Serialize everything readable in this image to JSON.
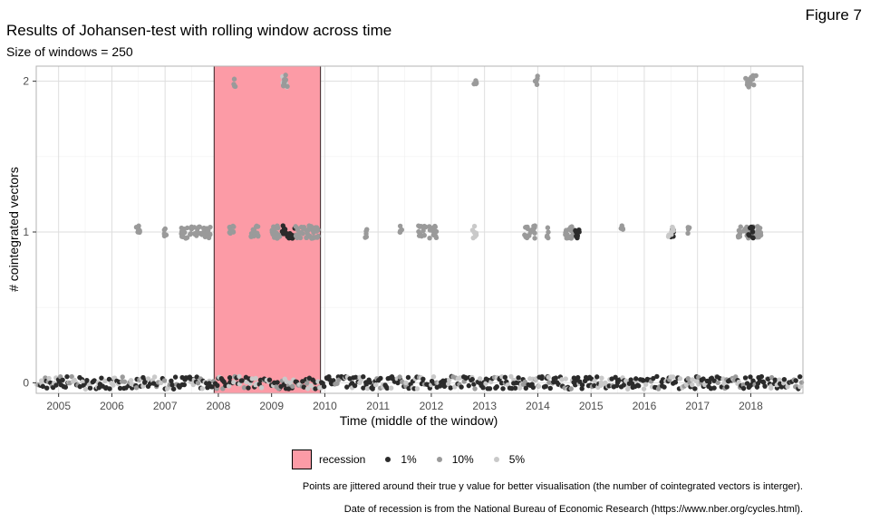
{
  "figure_label": "Figure 7",
  "chart_data": {
    "type": "scatter",
    "title": "Results of Johansen-test with rolling window across time",
    "subtitle": "Size of windows = 250",
    "xlabel": "Time (middle of the window)",
    "ylabel": "# cointegrated vectors",
    "x_ticks": [
      "2005",
      "2006",
      "2007",
      "2008",
      "2009",
      "2010",
      "2011",
      "2012",
      "2013",
      "2014",
      "2015",
      "2016",
      "2017",
      "2018"
    ],
    "y_ticks": [
      0,
      1,
      2
    ],
    "xlim": [
      2004.58,
      2018.98
    ],
    "ylim": [
      -0.07,
      2.1
    ],
    "grid": true,
    "legend_position": "bottom",
    "recession": {
      "label": "recession",
      "start": 2007.92,
      "end": 2009.92,
      "color": "#fc9ba6"
    },
    "series": [
      {
        "name": "1%",
        "color": "#2b2b2b"
      },
      {
        "name": "10%",
        "color": "#9a9a9a"
      },
      {
        "name": "5%",
        "color": "#c9c9c9"
      }
    ],
    "base_level": {
      "y": 0,
      "x_range": [
        2004.6,
        2018.97
      ]
    },
    "clusters": [
      {
        "x": [
          2006.45,
          2006.55
        ],
        "y": 1,
        "series": "10%"
      },
      {
        "x": [
          2006.98,
          2007.03
        ],
        "y": 1,
        "series": "10%"
      },
      {
        "x": [
          2007.3,
          2007.5
        ],
        "y": 1,
        "series": "10%"
      },
      {
        "x": [
          2007.55,
          2007.88
        ],
        "y": 1,
        "series": "10%"
      },
      {
        "x": [
          2008.2,
          2008.3
        ],
        "y": 1,
        "series": "10%"
      },
      {
        "x": [
          2008.6,
          2008.75
        ],
        "y": 1,
        "series": "10%"
      },
      {
        "x": [
          2009.0,
          2009.2
        ],
        "y": 1,
        "series": "10%"
      },
      {
        "x": [
          2009.2,
          2009.45
        ],
        "y": 1,
        "series": "1%"
      },
      {
        "x": [
          2009.45,
          2009.9
        ],
        "y": 1,
        "series": "10%"
      },
      {
        "x": [
          2010.75,
          2010.8
        ],
        "y": 1,
        "series": "10%"
      },
      {
        "x": [
          2011.4,
          2011.45
        ],
        "y": 1,
        "series": "10%"
      },
      {
        "x": [
          2011.75,
          2011.9
        ],
        "y": 1,
        "series": "10%"
      },
      {
        "x": [
          2011.95,
          2012.1
        ],
        "y": 1,
        "series": "10%"
      },
      {
        "x": [
          2012.75,
          2012.85
        ],
        "y": 1,
        "series": "5%"
      },
      {
        "x": [
          2013.75,
          2013.95
        ],
        "y": 1,
        "series": "10%"
      },
      {
        "x": [
          2014.15,
          2014.2
        ],
        "y": 1,
        "series": "10%"
      },
      {
        "x": [
          2014.5,
          2014.75
        ],
        "y": 1,
        "series": "10%"
      },
      {
        "x": [
          2014.7,
          2014.78
        ],
        "y": 1,
        "series": "1%"
      },
      {
        "x": [
          2015.55,
          2015.6
        ],
        "y": 1,
        "series": "10%"
      },
      {
        "x": [
          2016.45,
          2016.55
        ],
        "y": 1,
        "series": "1%"
      },
      {
        "x": [
          2016.45,
          2016.55
        ],
        "y": 1,
        "series": "5%"
      },
      {
        "x": [
          2016.8,
          2016.85
        ],
        "y": 1,
        "series": "10%"
      },
      {
        "x": [
          2017.75,
          2018.2
        ],
        "y": 1,
        "series": "10%"
      },
      {
        "x": [
          2017.95,
          2018.05
        ],
        "y": 1,
        "series": "1%"
      },
      {
        "x": [
          2008.28,
          2008.32
        ],
        "y": 2,
        "series": "10%"
      },
      {
        "x": [
          2009.2,
          2009.3
        ],
        "y": 2,
        "series": "5%"
      },
      {
        "x": [
          2009.2,
          2009.3
        ],
        "y": 2,
        "series": "10%"
      },
      {
        "x": [
          2012.8,
          2012.85
        ],
        "y": 2,
        "series": "10%"
      },
      {
        "x": [
          2013.95,
          2014.0
        ],
        "y": 2,
        "series": "10%"
      },
      {
        "x": [
          2017.9,
          2018.1
        ],
        "y": 2,
        "series": "10%"
      }
    ]
  },
  "notes": [
    "Points are jittered around their true y value for better visualisation (the number of cointegrated vectors is interger).",
    "Date of recession is from the National Bureau of Economic Research (https://www.nber.org/cycles.html)."
  ]
}
